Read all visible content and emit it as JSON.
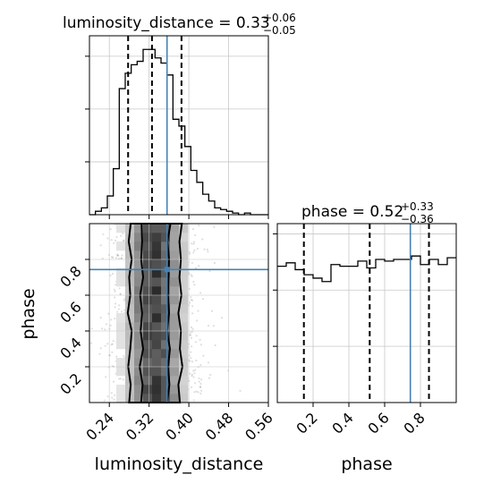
{
  "chart_data": {
    "type": "corner",
    "parameters": [
      "luminosity_distance",
      "phase"
    ],
    "truths": {
      "luminosity_distance": 0.3561,
      "phase": 0.7436
    },
    "panels": [
      {
        "id": "hist-luminosity-distance",
        "type": "histogram",
        "parameter": "luminosity_distance",
        "title": {
          "text": "luminosity_distance = 0.33",
          "upper": "+0.06",
          "lower": "−0.05"
        },
        "xlim": [
          0.2,
          0.56
        ],
        "ylim": [
          0,
          1
        ],
        "bin_edges": [
          0.2,
          0.212,
          0.224,
          0.236,
          0.248,
          0.26,
          0.272,
          0.284,
          0.296,
          0.308,
          0.32,
          0.332,
          0.344,
          0.356,
          0.368,
          0.38,
          0.392,
          0.404,
          0.416,
          0.428,
          0.44,
          0.452,
          0.464,
          0.476,
          0.488,
          0.5,
          0.512,
          0.524,
          0.536,
          0.548,
          0.56
        ],
        "counts": [
          0.0,
          0.02,
          0.04,
          0.11,
          0.27,
          0.74,
          0.83,
          0.88,
          0.9,
          0.97,
          0.97,
          0.92,
          0.89,
          0.82,
          0.56,
          0.52,
          0.4,
          0.26,
          0.19,
          0.12,
          0.08,
          0.04,
          0.03,
          0.02,
          0.01,
          0.0,
          0.01,
          0.0,
          0.0,
          0.0
        ],
        "quantile_lines": [
          0.2778,
          0.3258,
          0.3852
        ],
        "truth_line": 0.3561,
        "xticks": [
          0.24,
          0.32,
          0.4,
          0.48,
          0.56
        ],
        "yticks": [
          0.31,
          0.62,
          0.93
        ],
        "grid": true
      },
      {
        "id": "hist-phase",
        "type": "histogram",
        "parameter": "phase",
        "title": {
          "text": "phase = 0.52",
          "upper": "+0.33",
          "lower": "−0.36"
        },
        "xlim": [
          0.0,
          1.0
        ],
        "ylim": [
          0,
          1
        ],
        "bin_edges": [
          0.0,
          0.05,
          0.1,
          0.15,
          0.2,
          0.25,
          0.3,
          0.35,
          0.4,
          0.45,
          0.5,
          0.55,
          0.6,
          0.65,
          0.7,
          0.75,
          0.8,
          0.85,
          0.9,
          0.95,
          1.0
        ],
        "counts": [
          0.8,
          0.82,
          0.78,
          0.75,
          0.73,
          0.71,
          0.81,
          0.8,
          0.8,
          0.83,
          0.79,
          0.84,
          0.83,
          0.84,
          0.84,
          0.86,
          0.81,
          0.84,
          0.81,
          0.85
        ],
        "quantile_lines": [
          0.1485,
          0.5165,
          0.8477
        ],
        "truth_line": 0.7436,
        "xticks": [
          0.2,
          0.4,
          0.6,
          0.8
        ],
        "yticks": [
          0.33,
          0.66,
          0.99
        ],
        "grid": true
      },
      {
        "id": "joint-luminosity-distance-phase",
        "type": "2d-density",
        "x": "luminosity_distance",
        "y": "phase",
        "xlim": [
          0.2,
          0.56
        ],
        "ylim": [
          0.0,
          1.0
        ],
        "xticks": [
          0.24,
          0.32,
          0.4,
          0.48,
          0.56
        ],
        "yticks": [
          0.2,
          0.4,
          0.6,
          0.8
        ],
        "truth": {
          "x": 0.3561,
          "y": 0.7436
        },
        "contour_x_halfwidths_95": [
          0.052,
          0.049,
          0.054,
          0.05,
          0.047,
          0.055,
          0.05,
          0.052,
          0.047,
          0.053,
          0.049
        ],
        "contour_x_halfwidths_68": [
          0.028,
          0.025,
          0.031,
          0.024,
          0.029,
          0.026,
          0.03,
          0.024,
          0.028,
          0.026,
          0.027
        ],
        "center_x": 0.332,
        "grid": true
      }
    ],
    "axis_labels": {
      "luminosity_distance": "luminosity_distance",
      "phase": "phase"
    },
    "colors": {
      "truth": "#4682b4",
      "hist": "#000000",
      "quantile": "#000000",
      "grid": "#c8c8c8"
    }
  }
}
